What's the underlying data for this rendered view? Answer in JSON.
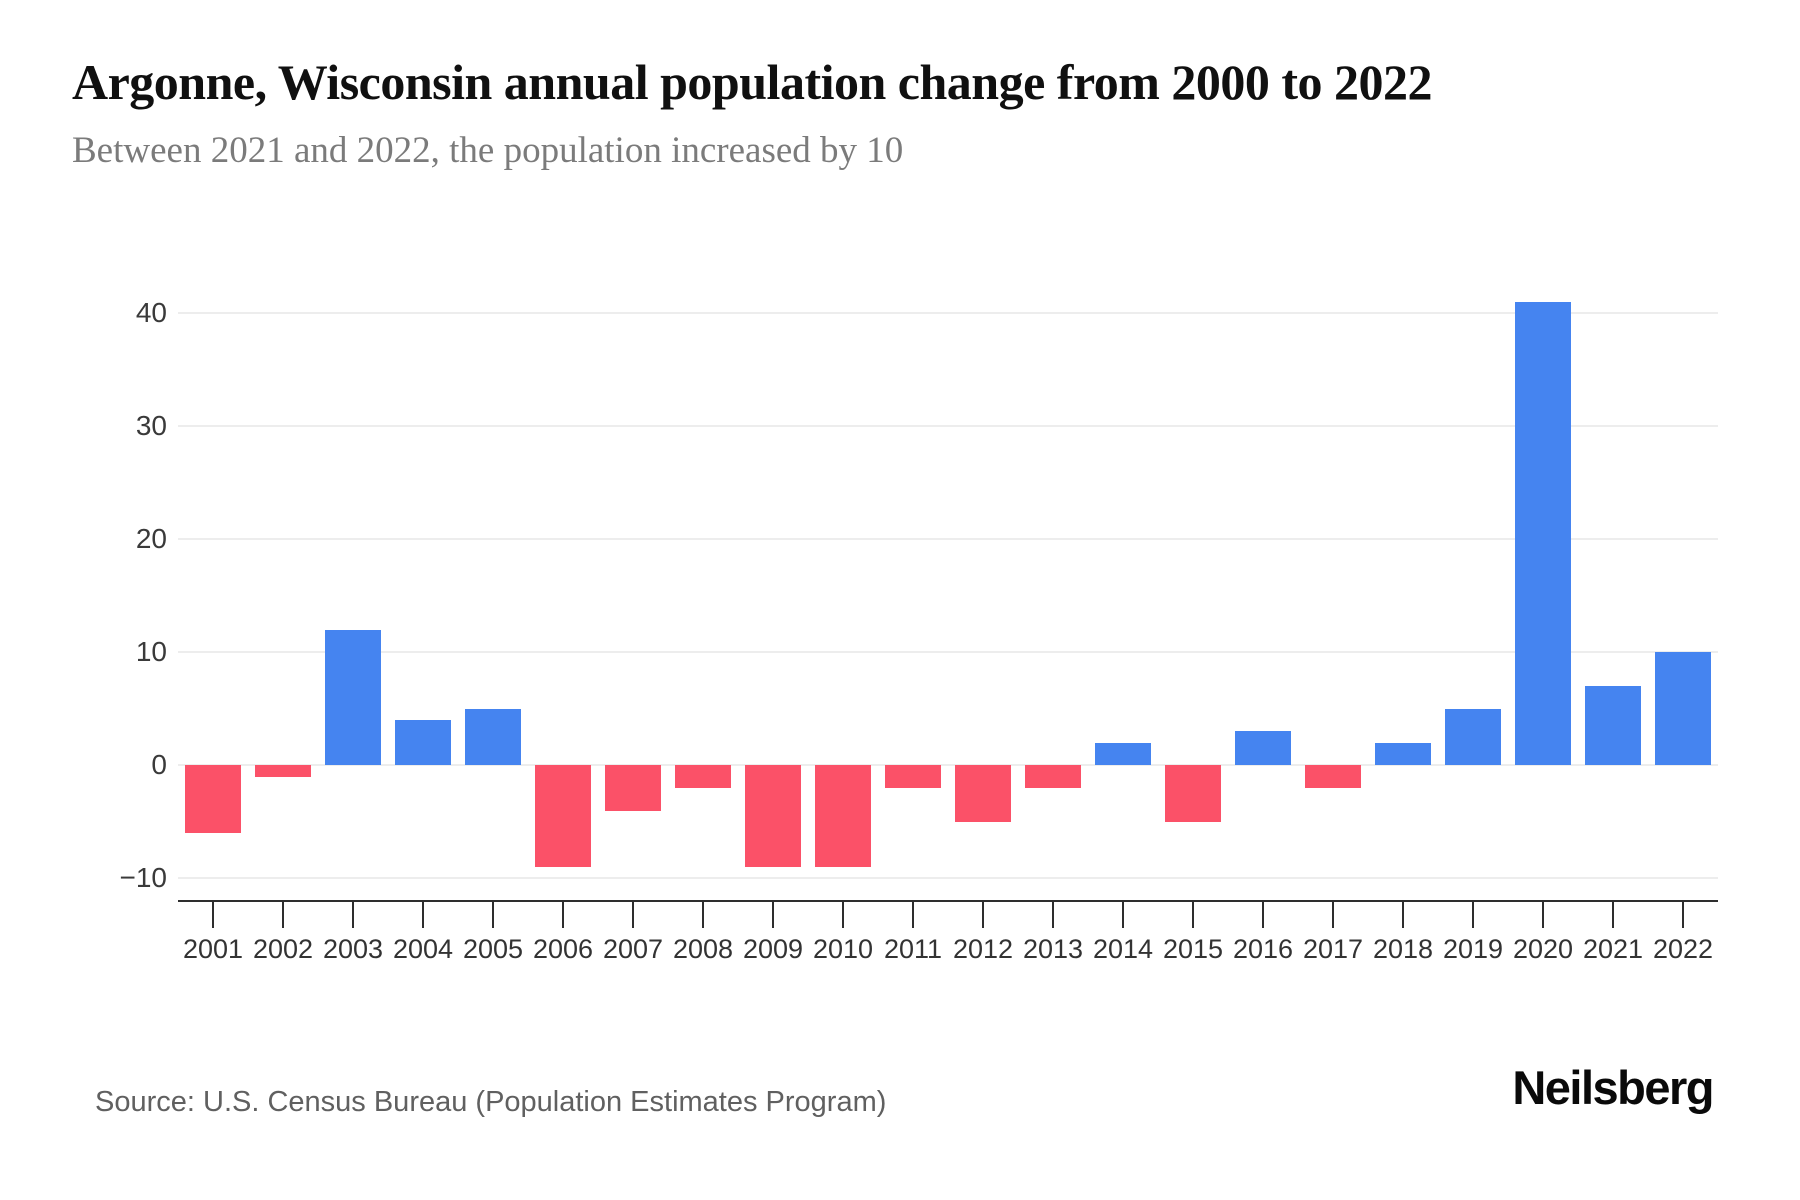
{
  "header": {
    "title": "Argonne, Wisconsin annual population change from 2000 to 2022",
    "subtitle": "Between 2021 and 2022, the population increased by 10"
  },
  "footer": {
    "source": "Source: U.S. Census Bureau (Population Estimates Program)",
    "brand": "Neilsberg"
  },
  "chart_data": {
    "type": "bar",
    "title": "Argonne, Wisconsin annual population change from 2000 to 2022",
    "categories": [
      "2001",
      "2002",
      "2003",
      "2004",
      "2005",
      "2006",
      "2007",
      "2008",
      "2009",
      "2010",
      "2011",
      "2012",
      "2013",
      "2014",
      "2015",
      "2016",
      "2017",
      "2018",
      "2019",
      "2020",
      "2021",
      "2022"
    ],
    "values": [
      -6,
      -1,
      12,
      4,
      5,
      -9,
      -4,
      -2,
      -9,
      -9,
      -2,
      -5,
      -2,
      2,
      -5,
      3,
      -2,
      2,
      5,
      41,
      7,
      10
    ],
    "xlabel": "",
    "ylabel": "",
    "ylim": [
      -12,
      42.5
    ],
    "yticks": [
      -10,
      0,
      10,
      20,
      30,
      40
    ],
    "ytick_labels": [
      "−10",
      "0",
      "10",
      "20",
      "30",
      "40"
    ],
    "grid": true,
    "legend": false,
    "colors": {
      "positive": "#4584f0",
      "negative": "#fb5168",
      "gridline": "#ededed",
      "axis": "#2e2e2e"
    }
  }
}
